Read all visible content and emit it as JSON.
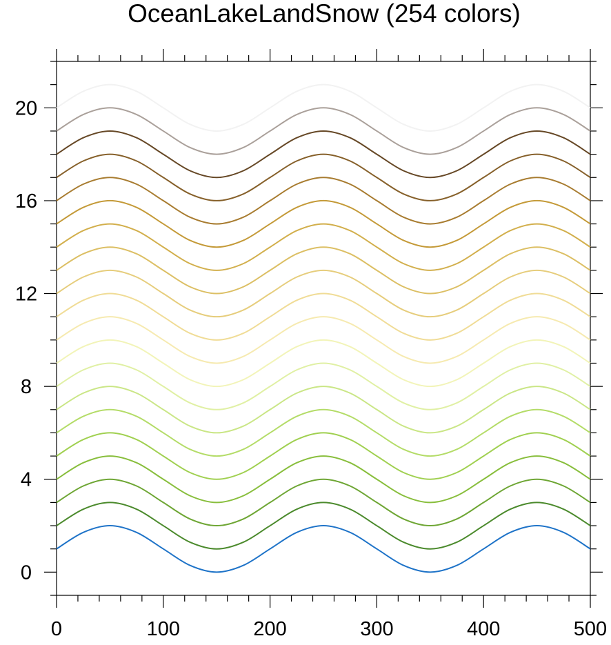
{
  "chart_data": {
    "type": "line",
    "title": "OceanLakeLandSnow (254 colors)",
    "x": [
      0,
      25,
      50,
      75,
      100,
      125,
      150,
      175,
      200,
      225,
      250,
      275,
      300,
      325,
      350,
      375,
      400,
      425,
      450,
      475,
      500
    ],
    "xlim": [
      0,
      500
    ],
    "xticks": [
      0,
      100,
      200,
      300,
      400,
      500
    ],
    "ylim": [
      -1,
      22
    ],
    "yticks": [
      0,
      4,
      8,
      12,
      16,
      20
    ],
    "series": [
      {
        "color": "#1e73c8",
        "values": [
          1,
          1.71,
          2,
          1.71,
          1,
          0.29,
          0,
          0.29,
          1,
          1.71,
          2,
          1.71,
          1,
          0.29,
          0,
          0.29,
          1,
          1.71,
          2,
          1.71,
          1
        ]
      },
      {
        "color": "#4b8a2c",
        "values": [
          2,
          2.71,
          3,
          2.71,
          2,
          1.29,
          1,
          1.29,
          2,
          2.71,
          3,
          2.71,
          2,
          1.29,
          1,
          1.29,
          2,
          2.71,
          3,
          2.71,
          2
        ]
      },
      {
        "color": "#6ea634",
        "values": [
          3,
          3.71,
          4,
          3.71,
          3,
          2.29,
          2,
          2.29,
          3,
          3.71,
          4,
          3.71,
          3,
          2.29,
          2,
          2.29,
          3,
          3.71,
          4,
          3.71,
          3
        ]
      },
      {
        "color": "#88be3c",
        "values": [
          4,
          4.71,
          5,
          4.71,
          4,
          3.29,
          3,
          3.29,
          4,
          4.71,
          5,
          4.71,
          4,
          3.29,
          3,
          3.29,
          4,
          4.71,
          5,
          4.71,
          4
        ]
      },
      {
        "color": "#a0d050",
        "values": [
          5,
          5.71,
          6,
          5.71,
          5,
          4.29,
          4,
          4.29,
          5,
          5.71,
          6,
          5.71,
          5,
          4.29,
          4,
          4.29,
          5,
          5.71,
          6,
          5.71,
          5
        ]
      },
      {
        "color": "#b4dc68",
        "values": [
          6,
          6.71,
          7,
          6.71,
          6,
          5.29,
          5,
          5.29,
          6,
          6.71,
          7,
          6.71,
          6,
          5.29,
          5,
          5.29,
          6,
          6.71,
          7,
          6.71,
          6
        ]
      },
      {
        "color": "#cae686",
        "values": [
          7,
          7.71,
          8,
          7.71,
          7,
          6.29,
          6,
          6.29,
          7,
          7.71,
          8,
          7.71,
          7,
          6.29,
          6,
          6.29,
          7,
          7.71,
          8,
          7.71,
          7
        ]
      },
      {
        "color": "#e0f0a4",
        "values": [
          8,
          8.71,
          9,
          8.71,
          8,
          7.29,
          7,
          7.29,
          8,
          8.71,
          9,
          8.71,
          8,
          7.29,
          7,
          7.29,
          8,
          8.71,
          9,
          8.71,
          8
        ]
      },
      {
        "color": "#f2f4b8",
        "values": [
          9,
          9.71,
          10,
          9.71,
          9,
          8.29,
          8,
          8.29,
          9,
          9.71,
          10,
          9.71,
          9,
          8.29,
          8,
          8.29,
          9,
          9.71,
          10,
          9.71,
          9
        ]
      },
      {
        "color": "#f6eab0",
        "values": [
          10,
          10.71,
          11,
          10.71,
          10,
          9.29,
          9,
          9.29,
          10,
          10.71,
          11,
          10.71,
          10,
          9.29,
          9,
          9.29,
          10,
          10.71,
          11,
          10.71,
          10
        ]
      },
      {
        "color": "#f0dc96",
        "values": [
          11,
          11.71,
          12,
          11.71,
          11,
          10.29,
          10,
          10.29,
          11,
          11.71,
          12,
          11.71,
          11,
          10.29,
          10,
          10.29,
          11,
          11.71,
          12,
          11.71,
          11
        ]
      },
      {
        "color": "#e6cd7c",
        "values": [
          12,
          12.71,
          13,
          12.71,
          12,
          11.29,
          11,
          11.29,
          12,
          12.71,
          13,
          12.71,
          12,
          11.29,
          11,
          11.29,
          12,
          12.71,
          13,
          12.71,
          12
        ]
      },
      {
        "color": "#dcbf64",
        "values": [
          13,
          13.71,
          14,
          13.71,
          13,
          12.29,
          12,
          12.29,
          13,
          13.71,
          14,
          13.71,
          13,
          12.29,
          12,
          12.29,
          13,
          13.71,
          14,
          13.71,
          13
        ]
      },
      {
        "color": "#d2af4c",
        "values": [
          14,
          14.71,
          15,
          14.71,
          14,
          13.29,
          13,
          13.29,
          14,
          14.71,
          15,
          14.71,
          14,
          13.29,
          13,
          13.29,
          14,
          14.71,
          15,
          14.71,
          14
        ]
      },
      {
        "color": "#c49a38",
        "values": [
          15,
          15.71,
          16,
          15.71,
          15,
          14.29,
          14,
          14.29,
          15,
          15.71,
          16,
          15.71,
          15,
          14.29,
          14,
          14.29,
          15,
          15.71,
          16,
          15.71,
          15
        ]
      },
      {
        "color": "#a87c30",
        "values": [
          16,
          16.71,
          17,
          16.71,
          16,
          15.29,
          15,
          15.29,
          16,
          16.71,
          17,
          16.71,
          16,
          15.29,
          15,
          15.29,
          16,
          16.71,
          17,
          16.71,
          16
        ]
      },
      {
        "color": "#86602a",
        "values": [
          17,
          17.71,
          18,
          17.71,
          17,
          16.29,
          16,
          16.29,
          17,
          17.71,
          18,
          17.71,
          17,
          16.29,
          16,
          16.29,
          17,
          17.71,
          18,
          17.71,
          17
        ]
      },
      {
        "color": "#664826",
        "values": [
          18,
          18.71,
          19,
          18.71,
          18,
          17.29,
          17,
          17.29,
          18,
          18.71,
          19,
          18.71,
          18,
          17.29,
          17,
          17.29,
          18,
          18.71,
          19,
          18.71,
          18
        ]
      },
      {
        "color": "#aaa09a",
        "values": [
          19,
          19.71,
          20,
          19.71,
          19,
          18.29,
          18,
          18.29,
          19,
          19.71,
          20,
          19.71,
          19,
          18.29,
          18,
          18.29,
          19,
          19.71,
          20,
          19.71,
          19
        ]
      },
      {
        "color": "#f2f2f2",
        "values": [
          20,
          20.71,
          21,
          20.71,
          20,
          19.29,
          19,
          19.29,
          20,
          20.71,
          21,
          20.71,
          20,
          19.29,
          19,
          19.29,
          20,
          20.71,
          21,
          20.71,
          20
        ]
      }
    ]
  }
}
